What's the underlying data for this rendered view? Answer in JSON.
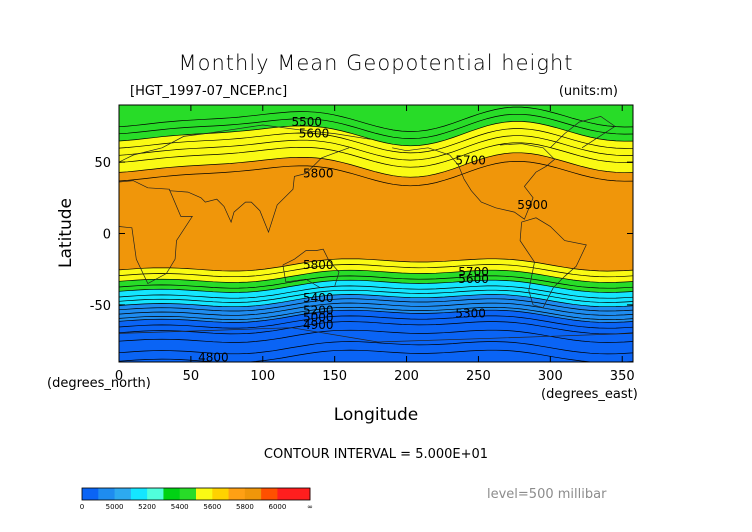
{
  "chart_data": {
    "type": "contour-map",
    "title": "Monthly Mean Geopotential height",
    "subtitle_left": "[HGT_1997-07_NCEP.nc]",
    "subtitle_right": "(units:m)",
    "xlabel": "Longitude",
    "ylabel": "Latitude",
    "x_unit_label": "(degrees_east)",
    "y_unit_label": "(degrees_north)",
    "xlim": [
      0,
      357.5
    ],
    "ylim": [
      -90,
      90
    ],
    "x_ticks": [
      0,
      50,
      100,
      150,
      200,
      250,
      300,
      350
    ],
    "y_ticks": [
      -50,
      0,
      50
    ],
    "contour_interval_text": "CONTOUR INTERVAL = 5.000E+01",
    "level_text": "level=500 millibar",
    "contour_labels": [
      {
        "text": "5500",
        "x": 120,
        "y": 78
      },
      {
        "text": "5600",
        "x": 125,
        "y": 70
      },
      {
        "text": "5700",
        "x": 234,
        "y": 51
      },
      {
        "text": "5800",
        "x": 128,
        "y": 42
      },
      {
        "text": "5900",
        "x": 277,
        "y": 20
      },
      {
        "text": "5800",
        "x": 128,
        "y": -22
      },
      {
        "text": "5700",
        "x": 236,
        "y": -27
      },
      {
        "text": "5600",
        "x": 236,
        "y": -32
      },
      {
        "text": "5400",
        "x": 128,
        "y": -45
      },
      {
        "text": "5300",
        "x": 234,
        "y": -56
      },
      {
        "text": "5200",
        "x": 128,
        "y": -54
      },
      {
        "text": "5000",
        "x": 128,
        "y": -59
      },
      {
        "text": "4900",
        "x": 128,
        "y": -64
      },
      {
        "text": "4800",
        "x": 55,
        "y": -87
      }
    ],
    "colorbar": {
      "bounds": [
        0,
        4900,
        5000,
        5100,
        5200,
        5300,
        5400,
        5500,
        5600,
        5700,
        5800,
        5900,
        6000,
        6100,
        6200
      ],
      "tick_labels": [
        "0",
        "5000",
        "5200",
        "5400",
        "5600",
        "5800",
        "6000",
        "∞"
      ],
      "colors": [
        "#0a64f5",
        "#1e8cf0",
        "#2daaf0",
        "#14e6ff",
        "#50ffdc",
        "#00d214",
        "#28dc28",
        "#fafa14",
        "#ffd200",
        "#ffa014",
        "#f0960a",
        "#ff5000",
        "#ff1e1e",
        "#ff1e1e"
      ]
    },
    "series": [
      {
        "name": "zonal_band_limits",
        "lat_edges": [
          90,
          80,
          70,
          60,
          48,
          42,
          -22,
          -30,
          -37,
          -47,
          -58,
          -66,
          -90
        ],
        "fills": [
          "#28dc28",
          "#28dc28",
          "#fafa14",
          "#fafa14",
          "#f0960a",
          "#f0960a",
          "#fafa14",
          "#28dc28",
          "#14e6ff",
          "#1e8cf0",
          "#0a64f5",
          "#0a64f5"
        ]
      }
    ]
  }
}
